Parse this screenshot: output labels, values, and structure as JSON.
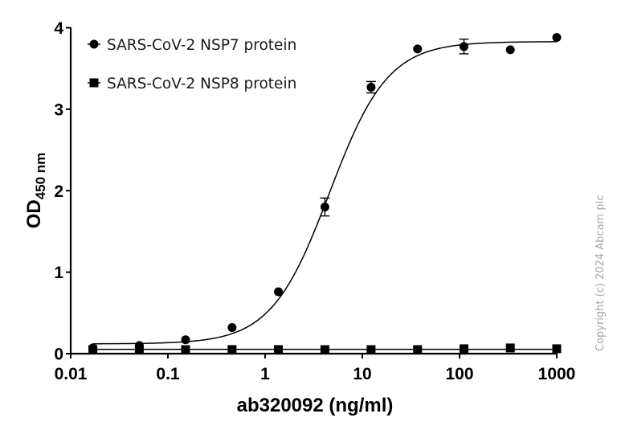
{
  "chart_data": {
    "type": "scatter",
    "title": "",
    "xlabel": "ab320092 (ng/ml)",
    "ylabel": "OD",
    "ylabel_subscript": "450 nm",
    "xscale": "log",
    "xlim": [
      0.01,
      1000
    ],
    "ylim": [
      0,
      4
    ],
    "x_ticks": [
      0.01,
      0.1,
      1,
      10,
      100,
      1000
    ],
    "x_tick_labels": [
      "0.01",
      "0.1",
      "1",
      "10",
      "100",
      "1000"
    ],
    "y_ticks": [
      0,
      1,
      2,
      3,
      4
    ],
    "y_tick_labels": [
      "0",
      "1",
      "2",
      "3",
      "4"
    ],
    "grid": false,
    "legend_position": "upper left",
    "series": [
      {
        "name": "SARS-CoV-2 NSP7 protein",
        "marker": "circle",
        "color": "#000000",
        "fit": "sigmoidal 4PL",
        "fit_params": {
          "bottom": 0.12,
          "top": 3.83,
          "ec50": 4.6,
          "hill": 1.45
        },
        "x": [
          0.0169,
          0.0508,
          0.152,
          0.457,
          1.37,
          4.12,
          12.3,
          37.0,
          111,
          333,
          1000
        ],
        "y": [
          0.07,
          0.1,
          0.17,
          0.32,
          0.76,
          1.8,
          3.27,
          3.74,
          3.77,
          3.73,
          3.88
        ],
        "error": [
          0,
          0,
          0,
          0,
          0,
          0.11,
          0.07,
          0,
          0.09,
          0,
          0
        ]
      },
      {
        "name": "SARS-CoV-2 NSP8 protein",
        "marker": "square",
        "color": "#000000",
        "fit": "flat line",
        "x": [
          0.0169,
          0.0508,
          0.152,
          0.457,
          1.37,
          4.12,
          12.3,
          37.0,
          111,
          333,
          1000
        ],
        "y": [
          0.05,
          0.05,
          0.05,
          0.05,
          0.05,
          0.05,
          0.05,
          0.05,
          0.06,
          0.07,
          0.06
        ],
        "error": [
          0,
          0,
          0,
          0,
          0,
          0,
          0,
          0,
          0,
          0,
          0
        ]
      }
    ],
    "annotations": [
      "Copyright (c) 2024 Abcam plc"
    ]
  },
  "labels": {
    "xlabel": "ab320092 (ng/ml)",
    "ylabel_main": "OD",
    "ylabel_sub": "450 nm",
    "legend": [
      "SARS-CoV-2 NSP7 protein",
      "SARS-CoV-2 NSP8 protein"
    ],
    "copyright": "Copyright (c) 2024 Abcam plc"
  }
}
